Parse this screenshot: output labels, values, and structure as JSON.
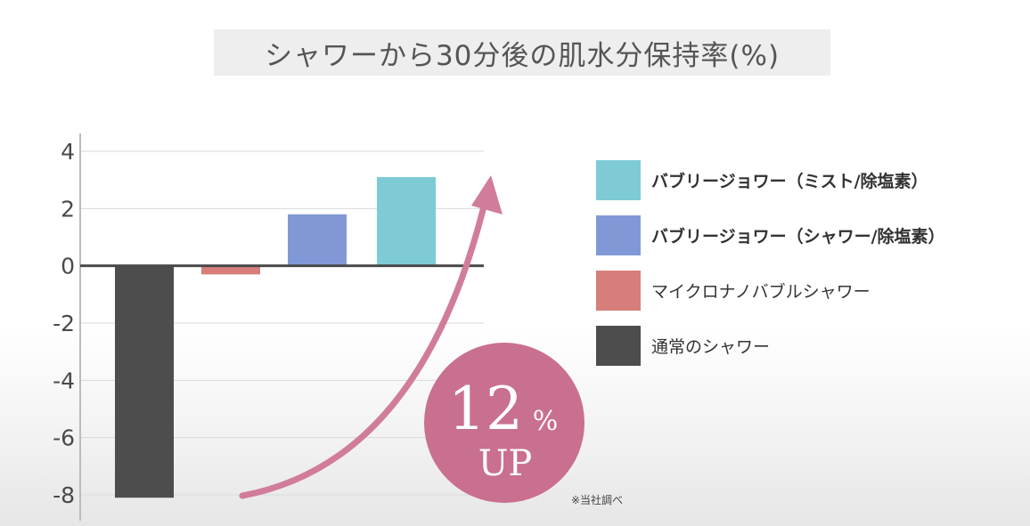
{
  "title": "シャワーから30分後の肌水分保持率(%)",
  "colors": {
    "mist": "#7ecbd6",
    "shower": "#8099d6",
    "micro": "#d77e7a",
    "normal": "#4d4d4d",
    "arrow": "#d17c9b",
    "badge": "#c96f90"
  },
  "legend": [
    {
      "label": "バブリージョワー（ミスト/除塩素）",
      "color": "#7ecbd6",
      "bold": true
    },
    {
      "label": "バブリージョワー（シャワー/除塩素）",
      "color": "#8099d6",
      "bold": true
    },
    {
      "label": "マイクロナノバブルシャワー",
      "color": "#d77e7a",
      "bold": false
    },
    {
      "label": "通常のシャワー",
      "color": "#4d4d4d",
      "bold": false
    }
  ],
  "badge": {
    "number": "12",
    "unit": "%",
    "text": "UP"
  },
  "footnote": "※当社調べ",
  "chart_data": {
    "type": "bar",
    "categories": [
      "通常のシャワー",
      "マイクロナノバブルシャワー",
      "バブリージョワー（シャワー/除塩素）",
      "バブリージョワー（ミスト/除塩素）"
    ],
    "values": [
      -8.1,
      -0.3,
      1.8,
      3.1
    ],
    "colors": [
      "#4d4d4d",
      "#d77e7a",
      "#8099d6",
      "#7ecbd6"
    ],
    "ylim": [
      -8,
      4
    ],
    "yticks": [
      "4",
      "2",
      "0",
      "-2",
      "-4",
      "-6",
      "-8"
    ],
    "grid": true,
    "legend_position": "right"
  }
}
